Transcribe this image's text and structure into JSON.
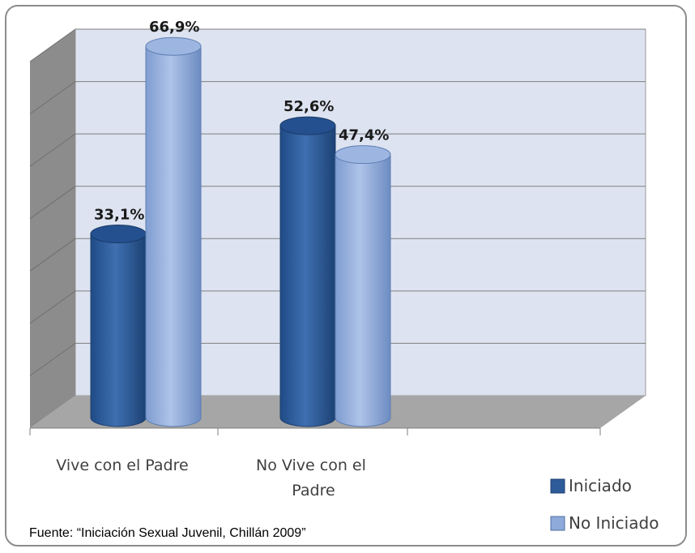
{
  "chart_data": {
    "type": "bar",
    "style": "3d-cylinder",
    "categories": [
      "Vive con el Padre",
      "No Vive con el Padre"
    ],
    "category_lines": [
      [
        "Vive con el Padre"
      ],
      [
        "No Vive con el",
        "Padre"
      ]
    ],
    "series": [
      {
        "name": "Iniciado",
        "values": [
          33.1,
          52.6
        ],
        "labels": [
          "33,1%",
          "52,6%"
        ],
        "color": "#2e5b9a"
      },
      {
        "name": "No Iniciado",
        "values": [
          66.9,
          47.4
        ],
        "labels": [
          "66,9%",
          "47,4%"
        ],
        "color": "#8eaadb"
      }
    ],
    "ylim": [
      0,
      70
    ],
    "grid": true,
    "legend": "bottom-right",
    "source": "Fuente: “Iniciación Sexual Juvenil,  Chillán 2009”"
  }
}
